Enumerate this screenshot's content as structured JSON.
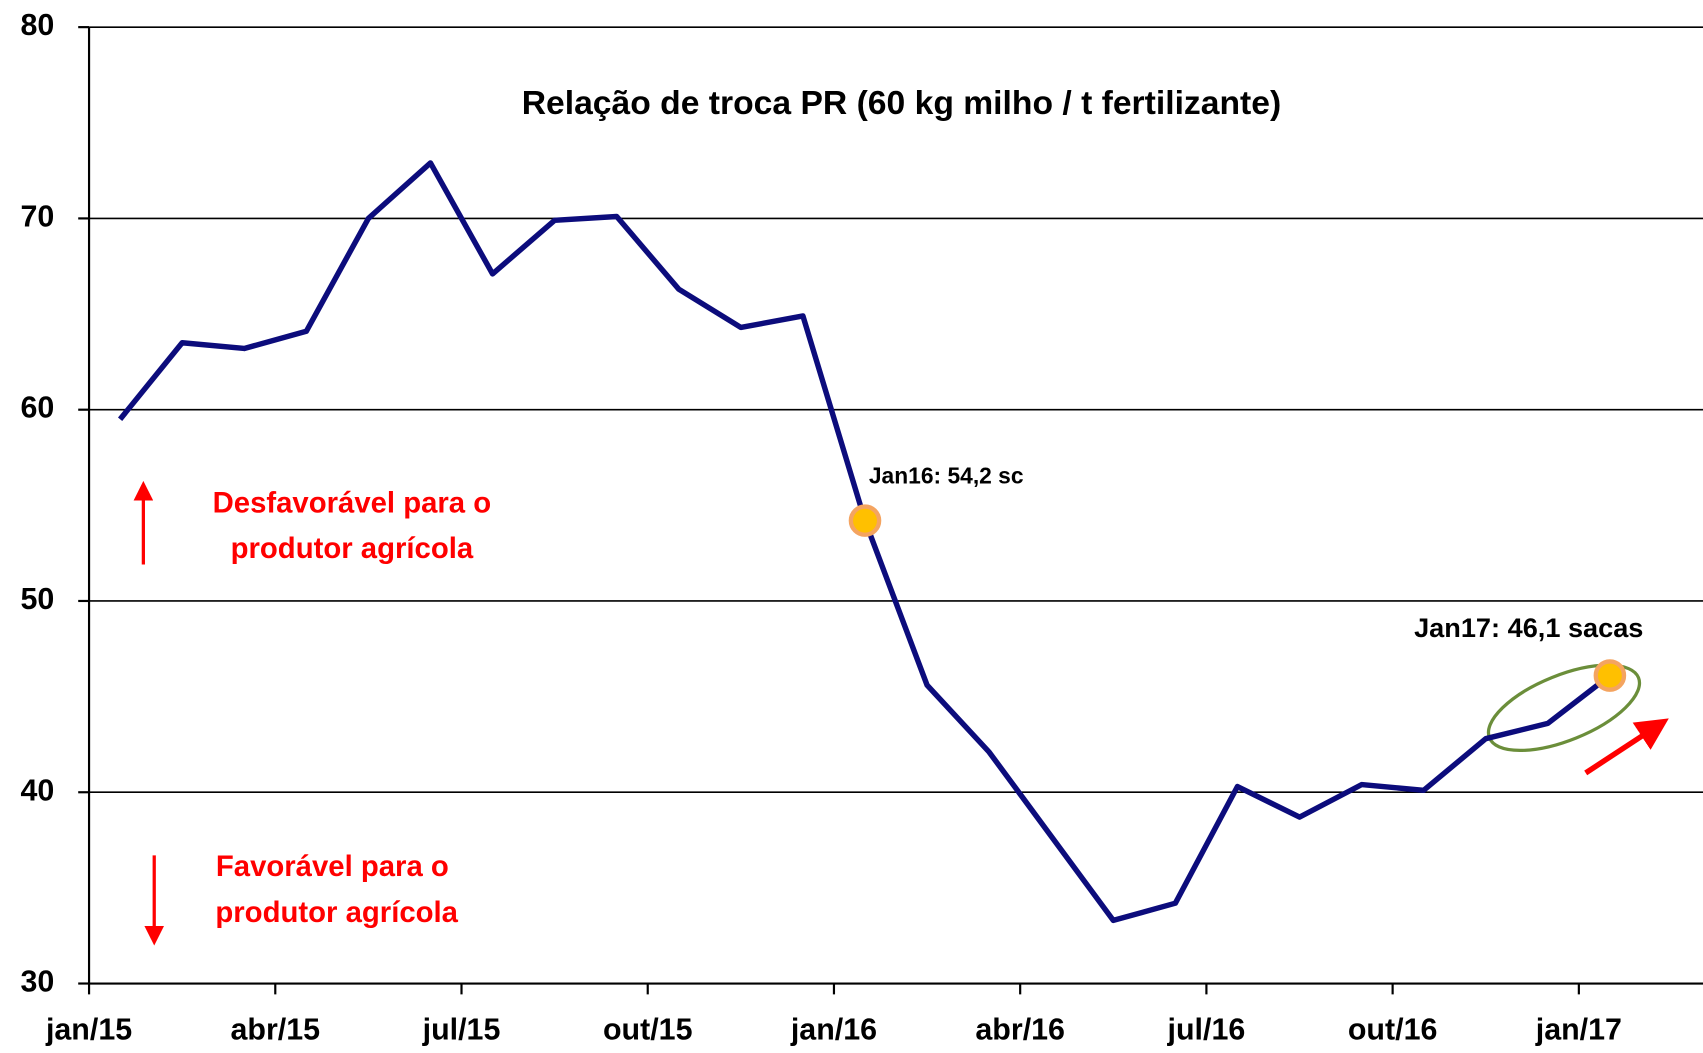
{
  "chart_data": {
    "type": "line",
    "title": "Relação de troca PR (60 kg milho / t fertilizante)",
    "categories": [
      "jan/15",
      null,
      null,
      "abr/15",
      null,
      null,
      "jul/15",
      null,
      null,
      "out/15",
      null,
      null,
      "jan/16",
      null,
      null,
      "abr/16",
      null,
      null,
      "jul/16",
      null,
      null,
      "out/16",
      null,
      null,
      "jan/17",
      null
    ],
    "series": [
      {
        "name": "Relação de troca PR",
        "color": "#0c0c7c",
        "values": [
          59.5,
          63.5,
          63.2,
          64.1,
          70.0,
          72.9,
          67.1,
          69.9,
          70.1,
          66.3,
          64.3,
          64.9,
          54.2,
          45.6,
          42.1,
          37.7,
          33.3,
          34.2,
          40.3,
          38.7,
          40.4,
          40.1,
          42.8,
          43.6,
          46.1,
          null
        ]
      }
    ],
    "ylim": [
      30,
      80
    ],
    "yticks": [
      30,
      40,
      50,
      60,
      70,
      80
    ],
    "grid": true,
    "annotations": [
      "Jan16: 54,2 sc",
      "Jan17: 46,1 sacas",
      "Desfavorável para o",
      "produtor agrícola",
      "Favorável para o",
      "produtor agrícola"
    ]
  }
}
